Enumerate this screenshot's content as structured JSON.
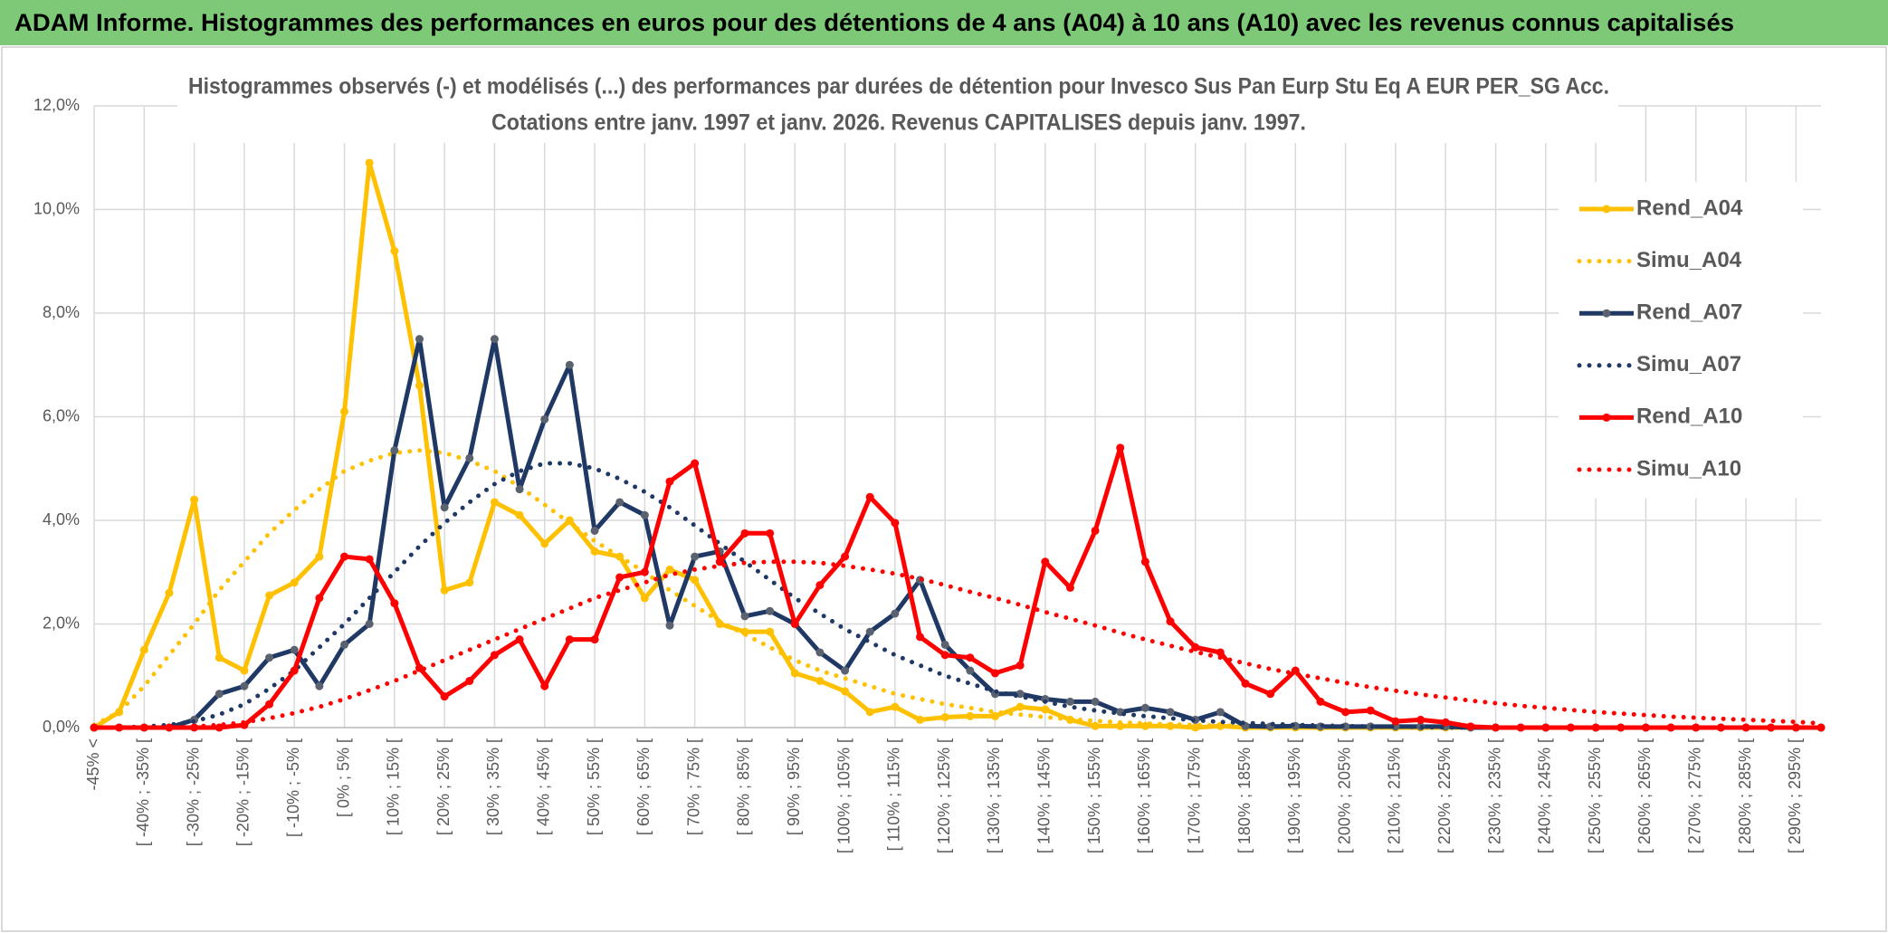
{
  "header": {
    "title": "ADAM Informe. Histogrammes des performances en euros pour des détentions de 4 ans (A04) à 10 ans (A10) avec les revenus connus capitalisés"
  },
  "chart_data": {
    "type": "line",
    "title": "Histogrammes observés (-) et modélisés (...) des performances par durées de détention pour Invesco Sus Pan Eurp Stu Eq A EUR PER_SG Acc.",
    "subtitle": "Cotations entre janv. 1997 et janv. 2026. Revenus CAPITALISES depuis janv. 1997.",
    "categories": [
      "-45% <",
      null,
      "[ -40% ; -35% [",
      null,
      "[ -30% ; -25% [",
      null,
      "[ -20% ; -15% [",
      null,
      "[ -10% ; -5% [",
      null,
      "[ 0% ; 5% [",
      null,
      "[ 10% ; 15% [",
      null,
      "[ 20% ; 25% [",
      null,
      "[ 30% ; 35% [",
      null,
      "[ 40% ; 45% [",
      null,
      "[ 50% ; 55% [",
      null,
      "[ 60% ; 65% [",
      null,
      "[ 70% ; 75% [",
      null,
      "[ 80% ; 85% [",
      null,
      "[ 90% ; 95% [",
      null,
      "[ 100% ; 105% [",
      null,
      "[ 110% ; 115% [",
      null,
      "[ 120% ; 125% [",
      null,
      "[ 130% ; 135% [",
      null,
      "[ 140% ; 145% [",
      null,
      "[ 150% ; 155% [",
      null,
      "[ 160% ; 165% [",
      null,
      "[ 170% ; 175% [",
      null,
      "[ 180% ; 185% [",
      null,
      "[ 190% ; 195% [",
      null,
      "[ 200% ; 205% [",
      null,
      "[ 210% ; 215% [",
      null,
      "[ 220% ; 225% [",
      null,
      "[ 230% ; 235% [",
      null,
      "[ 240% ; 245% [",
      null,
      "[ 250% ; 255% [",
      null,
      "[ 260% ; 265% [",
      null,
      "[ 270% ; 275% [",
      null,
      "[ 280% ; 285% [",
      null,
      "[ 290% ; 295% [",
      null
    ],
    "ylim": [
      0,
      12
    ],
    "yticks": [
      {
        "value": 0,
        "label": "0,0%"
      },
      {
        "value": 2,
        "label": "2,0%"
      },
      {
        "value": 4,
        "label": "4,0%"
      },
      {
        "value": 6,
        "label": "6,0%"
      },
      {
        "value": 8,
        "label": "8,0%"
      },
      {
        "value": 10,
        "label": "10,0%"
      },
      {
        "value": 12,
        "label": "12,0%"
      }
    ],
    "grid": true,
    "legend": "right",
    "series": [
      {
        "name": "Rend_A04",
        "color": "#ffc000",
        "style": "solid",
        "marker_color": "#ffc000",
        "values": [
          0,
          0.3,
          1.5,
          2.6,
          4.4,
          1.35,
          1.1,
          2.55,
          2.8,
          3.3,
          6.1,
          10.9,
          9.2,
          6.6,
          2.65,
          2.8,
          4.35,
          4.1,
          3.55,
          4.0,
          3.4,
          3.3,
          2.5,
          3.05,
          2.85,
          2.0,
          1.85,
          1.85,
          1.05,
          0.9,
          0.7,
          0.3,
          0.4,
          0.15,
          0.2,
          0.22,
          0.22,
          0.4,
          0.35,
          0.15,
          0.03,
          0.03,
          0.03,
          0.03,
          0,
          0.03,
          0,
          0,
          0,
          0,
          0,
          0,
          0,
          0,
          0,
          0,
          0,
          0,
          0,
          0,
          0,
          0,
          0,
          0,
          0,
          0,
          0,
          0,
          0,
          0
        ]
      },
      {
        "name": "Simu_A04",
        "color": "#ffc000",
        "style": "dotted",
        "values": [
          0.05,
          0.3,
          0.8,
          1.4,
          2.0,
          2.65,
          3.2,
          3.75,
          4.2,
          4.6,
          4.95,
          5.15,
          5.3,
          5.35,
          5.3,
          5.15,
          4.95,
          4.65,
          4.3,
          3.95,
          3.6,
          3.3,
          3.0,
          2.65,
          2.35,
          2.05,
          1.8,
          1.55,
          1.3,
          1.1,
          0.95,
          0.8,
          0.65,
          0.55,
          0.45,
          0.38,
          0.3,
          0.25,
          0.2,
          0.16,
          0.13,
          0.1,
          0.08,
          0.06,
          0.05,
          0.04,
          0.03,
          0.02,
          0.01,
          0,
          0,
          0,
          0,
          0,
          0,
          0,
          0,
          0,
          0,
          0,
          0,
          0,
          0,
          0,
          0,
          0,
          0,
          0,
          0,
          0
        ]
      },
      {
        "name": "Rend_A07",
        "color": "#1f3864",
        "style": "solid",
        "marker_color": "#5a6270",
        "values": [
          0,
          0,
          0,
          0,
          0.15,
          0.65,
          0.8,
          1.35,
          1.5,
          0.8,
          1.6,
          2.0,
          5.35,
          7.5,
          4.25,
          5.2,
          7.5,
          4.6,
          5.95,
          7.0,
          3.8,
          4.35,
          4.1,
          1.97,
          3.3,
          3.4,
          2.15,
          2.25,
          2.0,
          1.45,
          1.1,
          1.85,
          2.2,
          2.85,
          1.6,
          1.1,
          0.65,
          0.65,
          0.55,
          0.5,
          0.5,
          0.3,
          0.38,
          0.3,
          0.15,
          0.3,
          0.03,
          0.02,
          0.03,
          0.02,
          0.02,
          0.02,
          0.02,
          0.02,
          0.02,
          0,
          0,
          0,
          0,
          0,
          0,
          0,
          0,
          0,
          0,
          0,
          0,
          0,
          0,
          0
        ]
      },
      {
        "name": "Simu_A07",
        "color": "#1f3864",
        "style": "dotted",
        "values": [
          0,
          0,
          0.02,
          0.05,
          0.12,
          0.25,
          0.45,
          0.75,
          1.1,
          1.55,
          2.0,
          2.5,
          3.0,
          3.5,
          3.95,
          4.35,
          4.7,
          4.95,
          5.1,
          5.1,
          5.0,
          4.8,
          4.55,
          4.25,
          3.9,
          3.55,
          3.2,
          2.85,
          2.5,
          2.2,
          1.9,
          1.65,
          1.4,
          1.2,
          1.0,
          0.85,
          0.7,
          0.6,
          0.5,
          0.4,
          0.33,
          0.27,
          0.22,
          0.18,
          0.14,
          0.11,
          0.09,
          0.07,
          0.05,
          0.04,
          0.03,
          0.02,
          0.02,
          0.01,
          0,
          0,
          0,
          0,
          0,
          0,
          0,
          0,
          0,
          0,
          0,
          0,
          0,
          0,
          0,
          0
        ]
      },
      {
        "name": "Rend_A10",
        "color": "#ff0000",
        "style": "solid",
        "marker_color": "#ff0000",
        "values": [
          0,
          0,
          0,
          0,
          0,
          0,
          0.05,
          0.45,
          1.1,
          2.5,
          3.3,
          3.25,
          2.4,
          1.15,
          0.6,
          0.9,
          1.4,
          1.7,
          0.8,
          1.7,
          1.7,
          2.9,
          3.0,
          4.75,
          5.1,
          3.2,
          3.75,
          3.75,
          2.0,
          2.75,
          3.3,
          4.45,
          3.95,
          1.75,
          1.4,
          1.35,
          1.05,
          1.2,
          3.2,
          2.7,
          3.8,
          5.4,
          3.2,
          2.05,
          1.55,
          1.45,
          0.85,
          0.65,
          1.1,
          0.5,
          0.3,
          0.33,
          0.12,
          0.15,
          0.1,
          0.02,
          0,
          0,
          0,
          0,
          0,
          0,
          0,
          0,
          0,
          0,
          0,
          0,
          0,
          0
        ]
      },
      {
        "name": "Simu_A10",
        "color": "#ff0000",
        "style": "dotted",
        "values": [
          0,
          0,
          0,
          0,
          0.02,
          0.05,
          0.1,
          0.18,
          0.28,
          0.4,
          0.55,
          0.72,
          0.9,
          1.1,
          1.3,
          1.5,
          1.7,
          1.9,
          2.1,
          2.3,
          2.5,
          2.65,
          2.8,
          2.95,
          3.05,
          3.12,
          3.18,
          3.2,
          3.2,
          3.18,
          3.12,
          3.05,
          2.97,
          2.87,
          2.75,
          2.62,
          2.5,
          2.37,
          2.23,
          2.1,
          1.97,
          1.83,
          1.7,
          1.58,
          1.46,
          1.35,
          1.24,
          1.13,
          1.04,
          0.95,
          0.86,
          0.78,
          0.71,
          0.64,
          0.58,
          0.52,
          0.47,
          0.42,
          0.38,
          0.34,
          0.3,
          0.27,
          0.24,
          0.21,
          0.19,
          0.17,
          0.15,
          0.13,
          0.11,
          0.08
        ]
      }
    ]
  }
}
